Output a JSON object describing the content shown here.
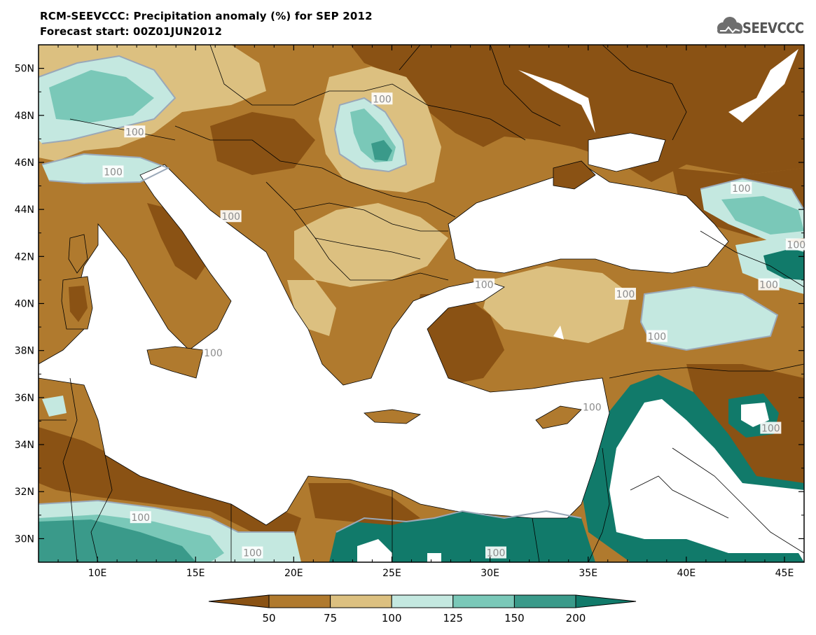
{
  "header": {
    "title": "RCM-SEEVCCC: Precipitation anomaly (%) for SEP 2012",
    "subtitle": "Forecast start: 00Z01JUN2012",
    "logo_text": "SEEVCCC"
  },
  "map": {
    "lon_range": [
      7,
      46
    ],
    "lat_range": [
      29,
      51
    ],
    "x_ticks": [
      "10E",
      "15E",
      "20E",
      "25E",
      "30E",
      "35E",
      "40E",
      "45E"
    ],
    "y_ticks": [
      "50N",
      "48N",
      "46N",
      "44N",
      "42N",
      "40N",
      "38N",
      "36N",
      "34N",
      "32N",
      "30N"
    ],
    "contour_label": "100",
    "contour_labels": [
      {
        "text": "100",
        "lon": 24.5,
        "lat": 48.7
      },
      {
        "text": "100",
        "lon": 11.9,
        "lat": 47.3
      },
      {
        "text": "100",
        "lon": 10.8,
        "lat": 45.6
      },
      {
        "text": "100",
        "lon": 16.8,
        "lat": 43.7
      },
      {
        "text": "100",
        "lon": 15.9,
        "lat": 37.9
      },
      {
        "text": "100",
        "lon": 12.2,
        "lat": 30.9
      },
      {
        "text": "100",
        "lon": 17.9,
        "lat": 29.4
      },
      {
        "text": "100",
        "lon": 29.7,
        "lat": 40.8
      },
      {
        "text": "100",
        "lon": 36.9,
        "lat": 40.4
      },
      {
        "text": "100",
        "lon": 38.5,
        "lat": 38.6
      },
      {
        "text": "100",
        "lon": 42.8,
        "lat": 44.9
      },
      {
        "text": "100",
        "lon": 45.6,
        "lat": 42.5
      },
      {
        "text": "100",
        "lon": 44.2,
        "lat": 40.8
      },
      {
        "text": "100",
        "lon": 35.2,
        "lat": 35.6
      },
      {
        "text": "100",
        "lon": 44.3,
        "lat": 34.7
      },
      {
        "text": "100",
        "lon": 30.3,
        "lat": 29.4
      }
    ],
    "colors": {
      "dark_brown": "#8a5214",
      "brown": "#b07a2e",
      "tan": "#dcc080",
      "light_teal": "#c4e8e0",
      "teal": "#7ac8b8",
      "dark_teal": "#3a9a8a",
      "deep_teal": "#117a6a",
      "contour": "#9aa8b8",
      "border": "#000000",
      "sea": "#ffffff"
    }
  },
  "legend": {
    "labels": [
      "50",
      "75",
      "100",
      "125",
      "150",
      "200"
    ],
    "colors": [
      "#8a5214",
      "#b07a2e",
      "#dcc080",
      "#c4e8e0",
      "#7ac8b8",
      "#3a9a8a",
      "#117a6a"
    ]
  }
}
